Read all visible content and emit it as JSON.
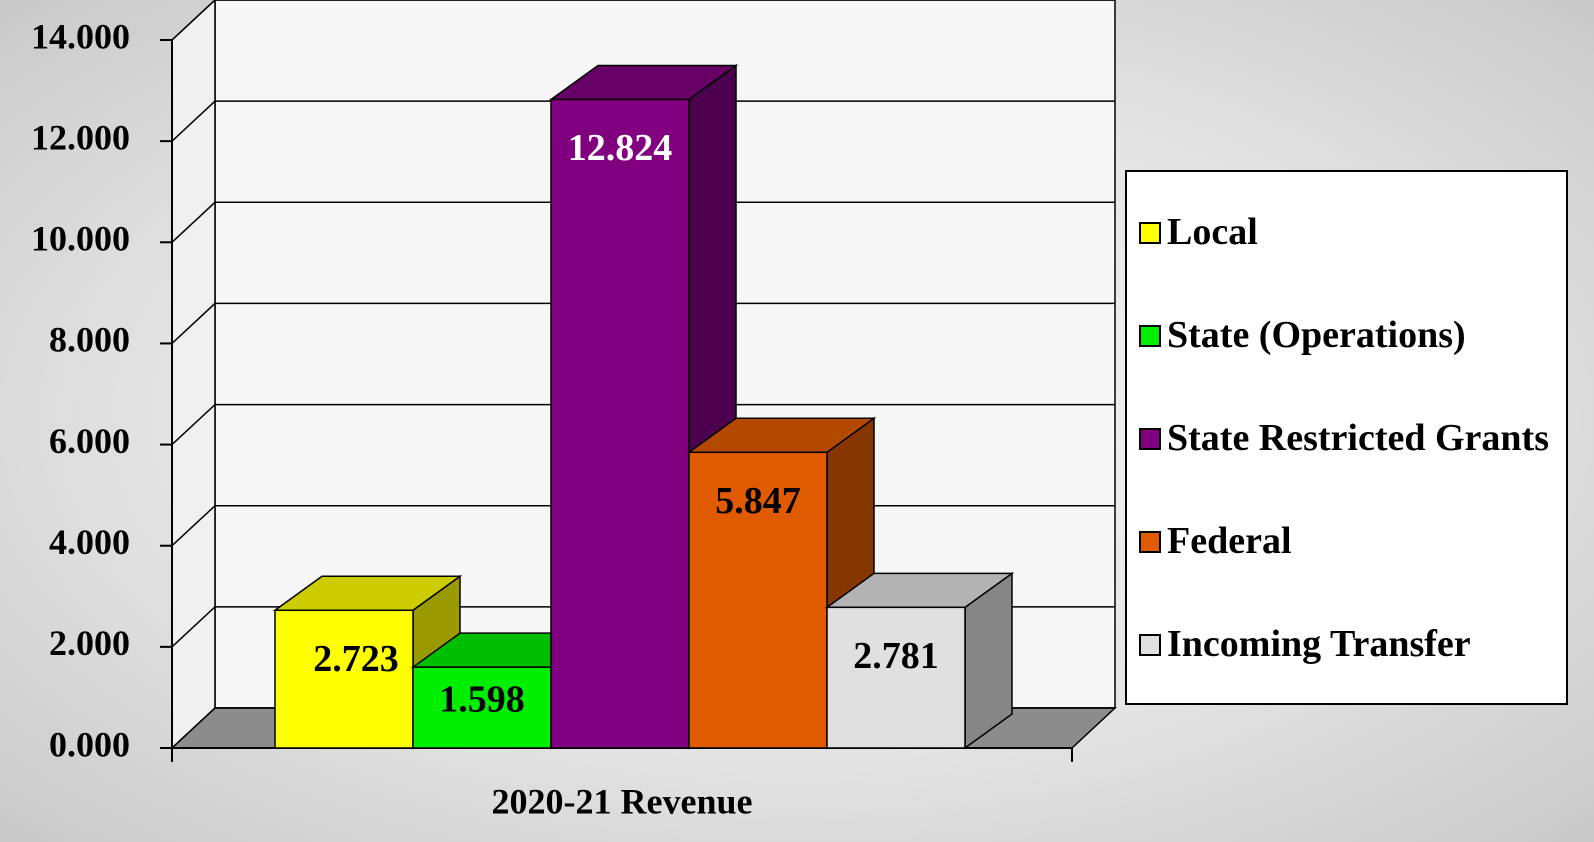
{
  "chart_data": {
    "type": "bar3d",
    "x_label": "2020-21 Revenue",
    "categories": [
      "2020-21 Revenue"
    ],
    "series": [
      {
        "name": "Local",
        "color": "#ffff00",
        "values": [
          2.723
        ]
      },
      {
        "name": "State (Operations)",
        "color": "#00ee00",
        "values": [
          1.598
        ]
      },
      {
        "name": "State Restricted Grants",
        "color": "#800080",
        "values": [
          12.824
        ]
      },
      {
        "name": "Federal",
        "color": "#e05a00",
        "values": [
          5.847
        ]
      },
      {
        "name": "Incoming Transfer",
        "color": "#e0e0e0",
        "values": [
          2.781
        ]
      }
    ],
    "ylim": [
      0,
      14
    ],
    "yticks": [
      {
        "value": 0,
        "label": "0.000"
      },
      {
        "value": 2,
        "label": "2.000"
      },
      {
        "value": 4,
        "label": "4.000"
      },
      {
        "value": 6,
        "label": "6.000"
      },
      {
        "value": 8,
        "label": "8.000"
      },
      {
        "value": 10,
        "label": "10.000"
      },
      {
        "value": 12,
        "label": "12.000"
      },
      {
        "value": 14,
        "label": "14.000"
      }
    ],
    "grid": true,
    "legend": "right"
  }
}
